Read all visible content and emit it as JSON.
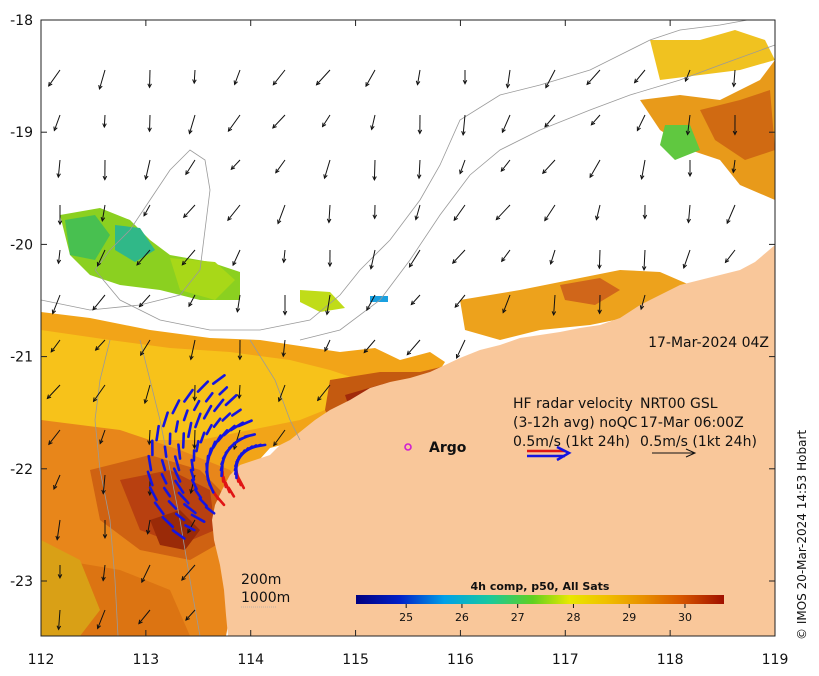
{
  "map": {
    "timestamp": "17-Mar-2024 04Z",
    "lon_ticks": [
      "112",
      "113",
      "114",
      "115",
      "116",
      "117",
      "118",
      "119"
    ],
    "lat_ticks": [
      "-18",
      "-19",
      "-20",
      "-21",
      "-22",
      "-23"
    ],
    "lon_range": [
      112,
      119
    ],
    "lat_range": [
      -23.5,
      -18
    ],
    "argo_label": "Argo",
    "hf_radar": {
      "line1": "HF radar velocity",
      "line2": "(3-12h avg) noQC",
      "line3": "0.5m/s (1kt 24h)"
    },
    "model": {
      "line1": "NRT00 GSL",
      "line2": "17-Mar 06:00Z",
      "line3": "0.5m/s (1kt 24h)"
    },
    "depth_contours": [
      "200m",
      "1000m"
    ],
    "credit": "© IMOS 20-Mar-2024 14:53 Hobart"
  },
  "colorbar": {
    "title": "4h comp, p50, All Sats",
    "ticks": [
      "25",
      "26",
      "27",
      "28",
      "29",
      "30"
    ],
    "tick_values": [
      25,
      26,
      27,
      28,
      29,
      30
    ],
    "range": [
      24.1,
      30.7
    ]
  },
  "colors": {
    "land": "#f9c79a",
    "hf_arrow": "#1515e0",
    "hf_arrow_alt": "#e01515",
    "argo": "#d020d0"
  }
}
